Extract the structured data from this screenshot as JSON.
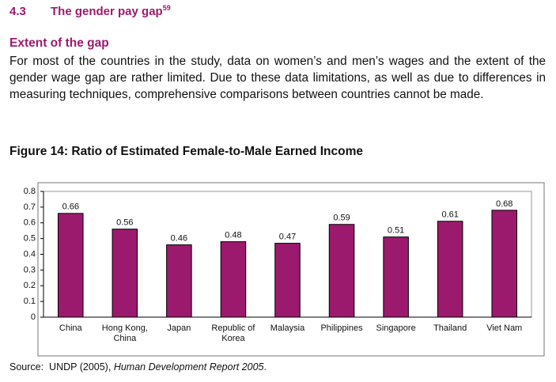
{
  "header": {
    "number": "4.3",
    "title": "The gender pay gap",
    "footnote": "59"
  },
  "section": {
    "subtitle": "Extent of the gap",
    "paragraph": "For most of the countries in the study, data on women’s and men’s wages and the extent of the gender wage gap are rather limited. Due to these data limitations, as well as due to differences in measuring techniques, comprehensive comparisons between countries cannot be made."
  },
  "figure_title": "Figure 14: Ratio of Estimated Female-to-Male Earned Income",
  "chart_data": {
    "type": "bar",
    "categories": [
      "China",
      "Hong Kong, China",
      "Japan",
      "Republic of Korea",
      "Malaysia",
      "Philippines",
      "Singapore",
      "Thailand",
      "Viet Nam"
    ],
    "values": [
      0.66,
      0.56,
      0.46,
      0.48,
      0.47,
      0.59,
      0.51,
      0.61,
      0.68
    ],
    "color": "#9c1a6d",
    "ylim": [
      0,
      0.8
    ],
    "yticks": [
      0,
      0.1,
      0.2,
      0.3,
      0.4,
      0.5,
      0.6,
      0.7,
      0.8
    ],
    "grid": false
  },
  "source": {
    "label": "Source:",
    "text": "UNDP (2005),",
    "italic": "Human Development Report 2005",
    "end": "."
  }
}
